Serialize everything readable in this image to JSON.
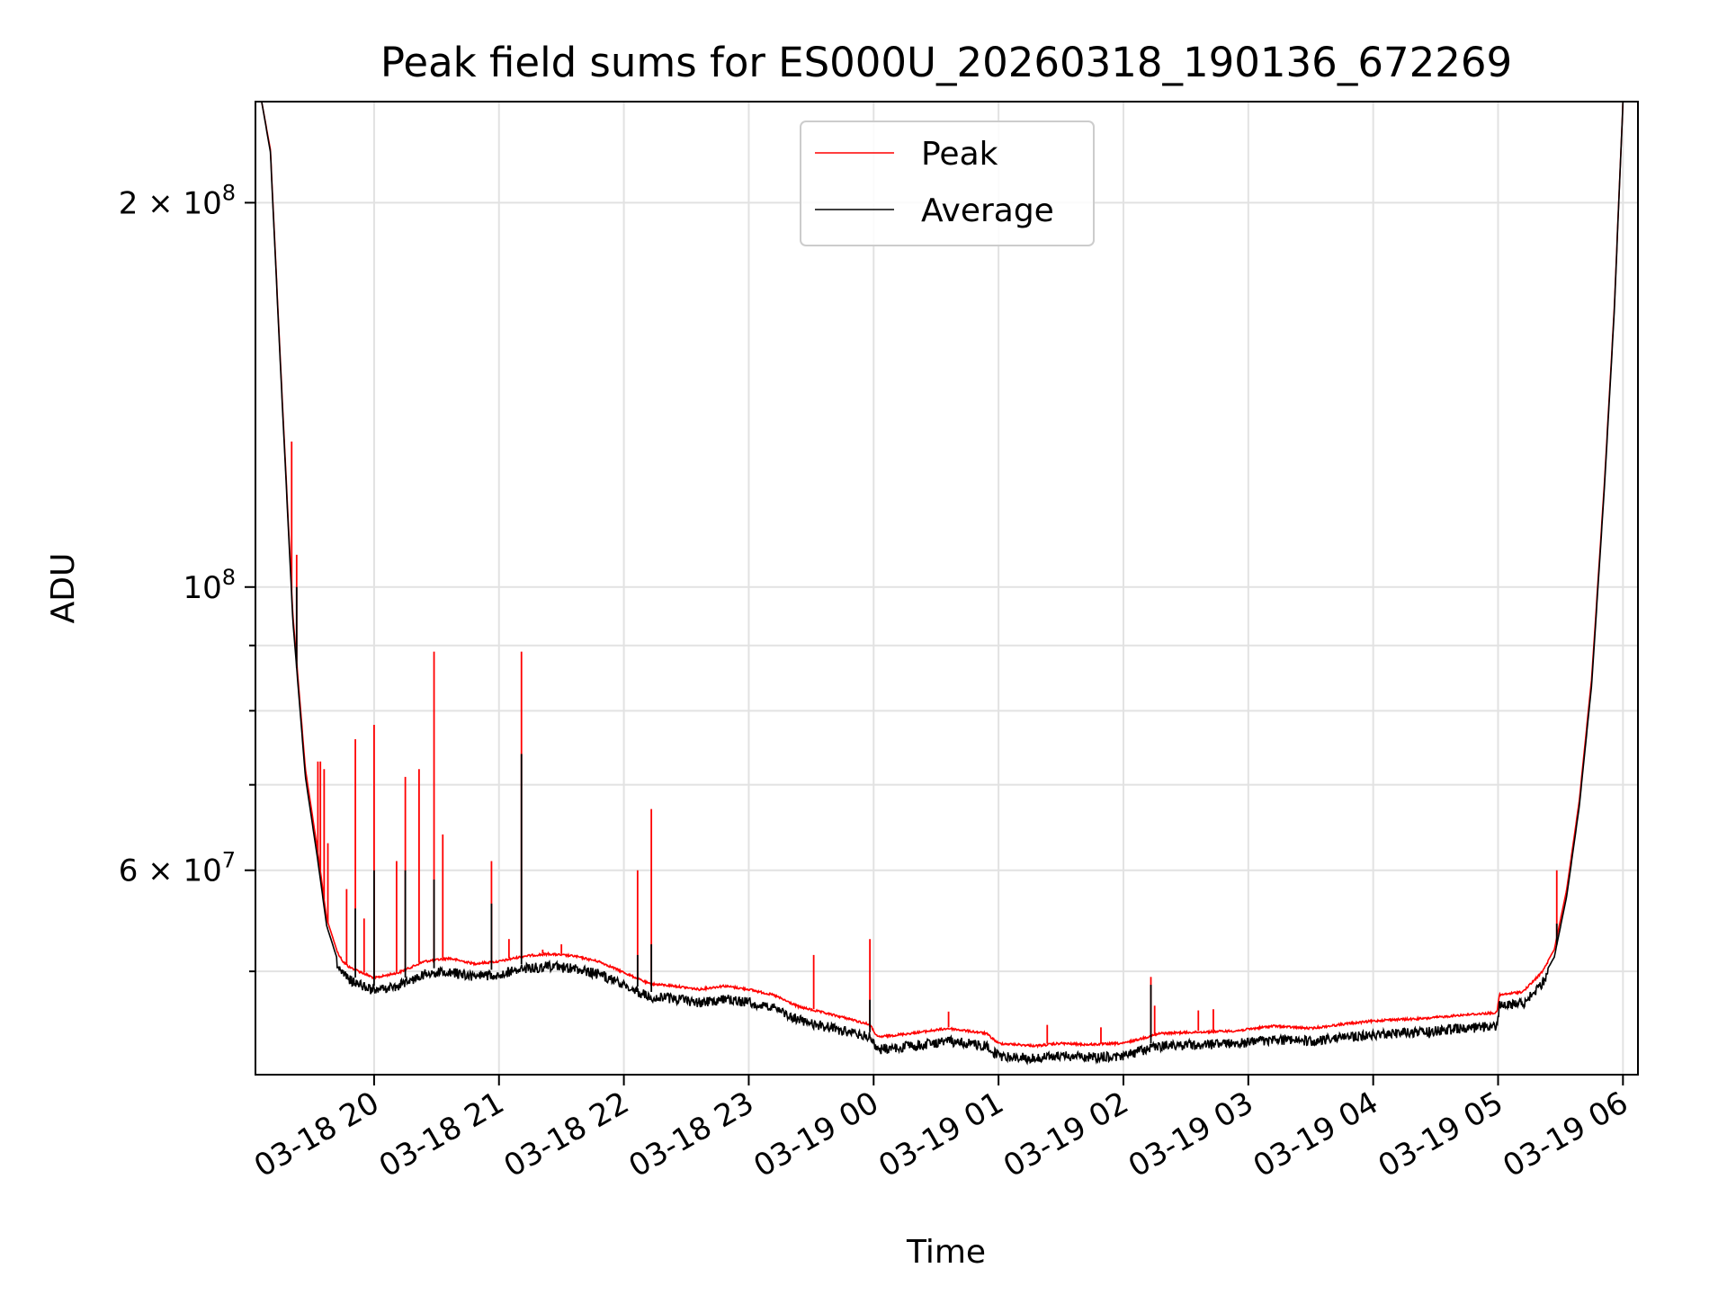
{
  "chart_data": {
    "type": "line",
    "title": "Peak field sums for ES000U_20260318_190136_672269",
    "xlabel": "Time",
    "ylabel": "ADU",
    "yscale": "log",
    "ylim": [
      41500000,
      240000000
    ],
    "xlim_hours": [
      -0.95,
      10.12
    ],
    "grid": true,
    "legend_position": "top-center",
    "x_ticks": [
      {
        "label": "03-18 20",
        "hour": 0
      },
      {
        "label": "03-18 21",
        "hour": 1
      },
      {
        "label": "03-18 22",
        "hour": 2
      },
      {
        "label": "03-18 23",
        "hour": 3
      },
      {
        "label": "03-19 00",
        "hour": 4
      },
      {
        "label": "03-19 01",
        "hour": 5
      },
      {
        "label": "03-19 02",
        "hour": 6
      },
      {
        "label": "03-19 03",
        "hour": 7
      },
      {
        "label": "03-19 04",
        "hour": 8
      },
      {
        "label": "03-19 05",
        "hour": 9
      },
      {
        "label": "03-19 06",
        "hour": 10
      }
    ],
    "y_major_ticks": [
      {
        "value": 60000000,
        "mant": "6",
        "exp": "7"
      },
      {
        "value": 100000000,
        "mant": "",
        "exp": "8"
      },
      {
        "value": 200000000,
        "mant": "2",
        "exp": "8"
      }
    ],
    "y_minor_ticks": [
      50000000,
      70000000,
      80000000,
      90000000
    ],
    "baseline_hours": [
      -0.9,
      -0.83,
      -0.75,
      -0.65,
      -0.55,
      -0.45,
      -0.38,
      -0.3,
      -0.25,
      -0.2,
      -0.1,
      0.0,
      0.2,
      0.4,
      0.6,
      0.8,
      1.0,
      1.2,
      1.4,
      1.6,
      1.8,
      2.0,
      2.2,
      2.4,
      2.6,
      2.8,
      3.0,
      3.2,
      3.4,
      3.6,
      3.8,
      3.97,
      4.03,
      4.3,
      4.6,
      4.9,
      5.0,
      5.3,
      5.5,
      5.7,
      6.0,
      6.3,
      6.6,
      6.9,
      7.2,
      7.5,
      7.8,
      8.1,
      8.4,
      8.7,
      8.99,
      9.01,
      9.2,
      9.35,
      9.45,
      9.55,
      9.65,
      9.75,
      9.85,
      9.93,
      10.0
    ],
    "series": [
      {
        "name": "Peak",
        "color": "#ff0000",
        "values": [
          240000000,
          220000000,
          150000000,
          95000000,
          72000000,
          62000000,
          55000000,
          52000000,
          51000000,
          50500000,
          50000000,
          49500000,
          50000000,
          51000000,
          51300000,
          50800000,
          51000000,
          51500000,
          51700000,
          51500000,
          51000000,
          50000000,
          49000000,
          48800000,
          48500000,
          48800000,
          48500000,
          48000000,
          47000000,
          46500000,
          46000000,
          45500000,
          44500000,
          44800000,
          45200000,
          44800000,
          44000000,
          43800000,
          44000000,
          43900000,
          44000000,
          44800000,
          44900000,
          45000000,
          45400000,
          45200000,
          45600000,
          45900000,
          46000000,
          46300000,
          46500000,
          48000000,
          48300000,
          50000000,
          52000000,
          58000000,
          68000000,
          85000000,
          120000000,
          165000000,
          240000000
        ],
        "spikes": [
          {
            "hour": -0.66,
            "value": 130000000
          },
          {
            "hour": -0.62,
            "value": 106000000
          },
          {
            "hour": -0.45,
            "value": 73000000
          },
          {
            "hour": -0.43,
            "value": 73000000
          },
          {
            "hour": -0.4,
            "value": 72000000
          },
          {
            "hour": -0.37,
            "value": 63000000
          },
          {
            "hour": -0.22,
            "value": 58000000
          },
          {
            "hour": -0.15,
            "value": 76000000
          },
          {
            "hour": -0.08,
            "value": 55000000
          },
          {
            "hour": 0.0,
            "value": 78000000
          },
          {
            "hour": 0.18,
            "value": 61000000
          },
          {
            "hour": 0.25,
            "value": 71000000
          },
          {
            "hour": 0.36,
            "value": 72000000
          },
          {
            "hour": 0.48,
            "value": 89000000
          },
          {
            "hour": 0.55,
            "value": 64000000
          },
          {
            "hour": 0.94,
            "value": 61000000
          },
          {
            "hour": 1.08,
            "value": 53000000
          },
          {
            "hour": 1.18,
            "value": 89000000
          },
          {
            "hour": 1.35,
            "value": 52000000
          },
          {
            "hour": 1.5,
            "value": 52500000
          },
          {
            "hour": 2.11,
            "value": 60000000
          },
          {
            "hour": 2.22,
            "value": 67000000
          },
          {
            "hour": 3.52,
            "value": 51500000
          },
          {
            "hour": 3.97,
            "value": 53000000
          },
          {
            "hour": 4.6,
            "value": 46500000
          },
          {
            "hour": 5.39,
            "value": 45400000
          },
          {
            "hour": 5.82,
            "value": 45200000
          },
          {
            "hour": 6.22,
            "value": 49500000
          },
          {
            "hour": 6.25,
            "value": 47000000
          },
          {
            "hour": 6.6,
            "value": 46600000
          },
          {
            "hour": 6.72,
            "value": 46700000
          },
          {
            "hour": 9.47,
            "value": 60000000
          }
        ]
      },
      {
        "name": "Average",
        "color": "#000000",
        "values": [
          240000000,
          219000000,
          149000000,
          94000000,
          71000000,
          61000000,
          54300000,
          51300000,
          50200000,
          49700000,
          49200000,
          48700000,
          49200000,
          50200000,
          50400000,
          50000000,
          50200000,
          50700000,
          50900000,
          50700000,
          50200000,
          49200000,
          48200000,
          48000000,
          47700000,
          48000000,
          47700000,
          47200000,
          46200000,
          45700000,
          45200000,
          44800000,
          43800000,
          44100000,
          44500000,
          44100000,
          43300000,
          43100000,
          43300000,
          43200000,
          43300000,
          44100000,
          44200000,
          44300000,
          44600000,
          44500000,
          44800000,
          45100000,
          45200000,
          45500000,
          45700000,
          47400000,
          47600000,
          49300000,
          51300000,
          57300000,
          67300000,
          84000000,
          119000000,
          164000000,
          240000000
        ],
        "spikes": [
          {
            "hour": -0.62,
            "value": 100000000
          },
          {
            "hour": -0.15,
            "value": 56000000
          },
          {
            "hour": 0.0,
            "value": 60000000
          },
          {
            "hour": 0.25,
            "value": 60000000
          },
          {
            "hour": 0.48,
            "value": 59000000
          },
          {
            "hour": 0.94,
            "value": 56500000
          },
          {
            "hour": 1.18,
            "value": 74000000
          },
          {
            "hour": 2.11,
            "value": 51500000
          },
          {
            "hour": 2.22,
            "value": 52500000
          },
          {
            "hour": 3.97,
            "value": 47500000
          },
          {
            "hour": 6.22,
            "value": 48800000
          },
          {
            "hour": 9.47,
            "value": 54500000
          }
        ]
      }
    ]
  }
}
